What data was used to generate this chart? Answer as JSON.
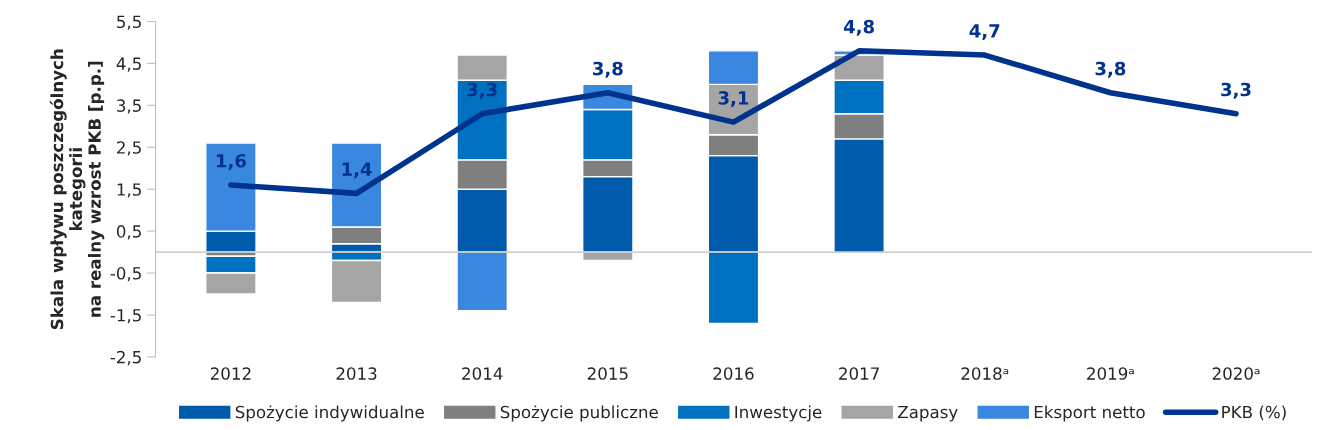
{
  "chart_data": {
    "type": "bar",
    "stacked": true,
    "ylabel": "Skala wpływu poszczególnych\nkategorii\nna realny wzrost PKB [p.p.]",
    "categories": [
      "2012",
      "2013",
      "2014",
      "2015",
      "2016",
      "2017",
      "2018ᵃ",
      "2019ᵃ",
      "2020ᵃ"
    ],
    "series": [
      {
        "name": "Spożycie indywidualne",
        "color": "#005bac",
        "values": [
          0.5,
          0.2,
          1.5,
          1.8,
          2.3,
          2.7,
          null,
          null,
          null
        ]
      },
      {
        "name": "Spożycie publiczne",
        "color": "#7f7f7f",
        "values": [
          -0.1,
          0.4,
          0.7,
          0.4,
          0.5,
          0.6,
          null,
          null,
          null
        ]
      },
      {
        "name": "Inwestycje",
        "color": "#0070c0",
        "values": [
          -0.4,
          -0.2,
          1.9,
          1.2,
          -1.7,
          0.8,
          null,
          null,
          null
        ]
      },
      {
        "name": "Zapasy",
        "color": "#a5a5a5",
        "values": [
          -0.5,
          -1.0,
          0.6,
          -0.2,
          1.2,
          0.6,
          null,
          null,
          null
        ]
      },
      {
        "name": "Eksport netto",
        "color": "#3a87e0",
        "values": [
          2.1,
          2.0,
          -1.4,
          0.6,
          0.8,
          0.1,
          null,
          null,
          null
        ]
      },
      {
        "name": "PKB (%)",
        "type": "line",
        "color": "#00338d",
        "values": [
          1.6,
          1.4,
          3.3,
          3.8,
          3.1,
          4.8,
          4.7,
          3.8,
          3.3
        ],
        "value_labels": [
          "1,6",
          "1,4",
          "3,3",
          "3,8",
          "3,1",
          "4,8",
          "4,7",
          "3,8",
          "3,3"
        ]
      }
    ],
    "ylim": [
      -2.5,
      5.5
    ],
    "yticks": [
      {
        "value": -2.5,
        "label": "-2,5"
      },
      {
        "value": -1.5,
        "label": "-1,5"
      },
      {
        "value": -0.5,
        "label": "-0,5"
      },
      {
        "value": 0.5,
        "label": "0,5"
      },
      {
        "value": 1.5,
        "label": "1,5"
      },
      {
        "value": 2.5,
        "label": "2,5"
      },
      {
        "value": 3.5,
        "label": "3,5"
      },
      {
        "value": 4.5,
        "label": "4,5"
      },
      {
        "value": 5.5,
        "label": "5,5"
      }
    ],
    "grid": false,
    "legend": "bottom",
    "marker": "none"
  }
}
